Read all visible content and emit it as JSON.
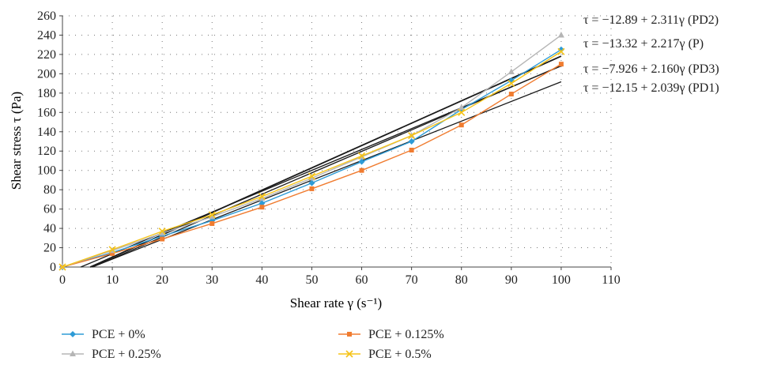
{
  "chart_data": {
    "type": "line",
    "title": "",
    "xlabel": "Shear rate γ (s⁻¹)",
    "ylabel": "Shear stress τ (Pa)",
    "xlim": [
      0,
      110
    ],
    "ylim": [
      0,
      260
    ],
    "xticks": [
      0,
      10,
      20,
      30,
      40,
      50,
      60,
      70,
      80,
      90,
      100,
      110
    ],
    "yticks": [
      0,
      20,
      40,
      60,
      80,
      100,
      120,
      140,
      160,
      180,
      200,
      220,
      240,
      260
    ],
    "grid": "dotted",
    "legend_position": "bottom",
    "x": [
      0,
      10,
      20,
      30,
      40,
      50,
      60,
      70,
      80,
      90,
      100
    ],
    "series": [
      {
        "name": "PCE + 0%",
        "color": "#2e9bd6",
        "marker": "diamond",
        "values": [
          0,
          15,
          32,
          48,
          66,
          87,
          109,
          130,
          163,
          193,
          225
        ]
      },
      {
        "name": "PCE + 0.125%",
        "color": "#f07c30",
        "marker": "square",
        "values": [
          0,
          14,
          29,
          45,
          62,
          81,
          100,
          121,
          147,
          179,
          210
        ]
      },
      {
        "name": "PCE + 0.25%",
        "color": "#b5b5b5",
        "marker": "triangle",
        "values": [
          0,
          17,
          35,
          52,
          71,
          92,
          114,
          136,
          165,
          202,
          240
        ]
      },
      {
        "name": "PCE + 0.5%",
        "color": "#f5c318",
        "marker": "x",
        "values": [
          0,
          18,
          37,
          54,
          73,
          94,
          115,
          136,
          160,
          190,
          223
        ]
      }
    ],
    "fit_lines": [
      {
        "label": "τ = −12.89 + 2.311γ (PD2)",
        "intercept": -12.89,
        "slope": 2.311
      },
      {
        "label": "τ = −13.32 + 2.217γ (P)",
        "intercept": -13.32,
        "slope": 2.217
      },
      {
        "label": "τ = −7.926 + 2.160γ (PD3)",
        "intercept": -7.926,
        "slope": 2.16
      },
      {
        "label": "τ = −12.15 + 2.039γ (PD1)",
        "intercept": -12.15,
        "slope": 2.039
      }
    ]
  }
}
